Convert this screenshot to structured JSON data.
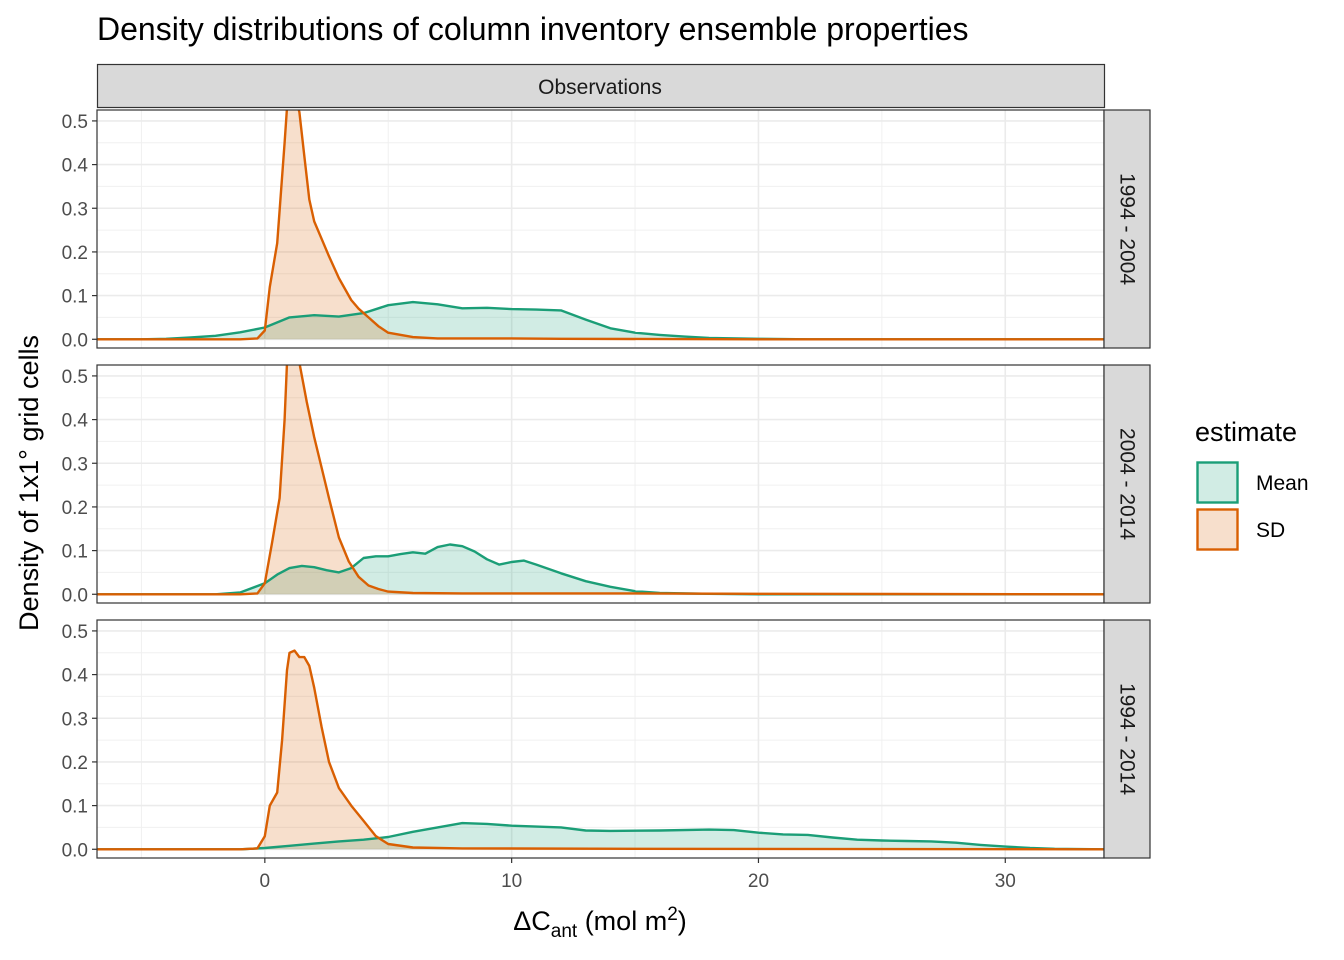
{
  "chart_data": {
    "type": "area",
    "title": "Density distributions of column inventory ensemble properties",
    "xlabel": {
      "base": "ΔC",
      "sub": "ant",
      "unit_open": " (mol m",
      "sup": "2",
      "unit_close": ")"
    },
    "ylabel": "Density of 1x1° grid cells",
    "column_facet": "Observations",
    "xlim": [
      -6.8,
      34.0
    ],
    "ylim": [
      -0.02,
      0.525
    ],
    "x_ticks": [
      0,
      10,
      20,
      30
    ],
    "y_ticks": [
      0.0,
      0.1,
      0.2,
      0.3,
      0.4,
      0.5
    ],
    "y_tick_labels": [
      "0.0",
      "0.1",
      "0.2",
      "0.3",
      "0.4",
      "0.5"
    ],
    "grid": true,
    "legend": {
      "title": "estimate",
      "position": "right"
    },
    "series_styles": [
      {
        "name": "Mean",
        "line_color": "#1b9e77",
        "fill_color": "#1b9e77",
        "fill_opacity": 0.2
      },
      {
        "name": "SD",
        "line_color": "#d95f02",
        "fill_color": "#d95f02",
        "fill_opacity": 0.2
      }
    ],
    "panels": [
      {
        "label": "1994 - 2004",
        "series": [
          {
            "name": "Mean",
            "points": [
              [
                -6.8,
                0
              ],
              [
                -5,
                0
              ],
              [
                -4,
                0.001
              ],
              [
                -3,
                0.004
              ],
              [
                -2,
                0.008
              ],
              [
                -1,
                0.016
              ],
              [
                0,
                0.027
              ],
              [
                1,
                0.05
              ],
              [
                2,
                0.055
              ],
              [
                3,
                0.052
              ],
              [
                4,
                0.06
              ],
              [
                5,
                0.078
              ],
              [
                6,
                0.085
              ],
              [
                7,
                0.08
              ],
              [
                8,
                0.071
              ],
              [
                9,
                0.072
              ],
              [
                10,
                0.069
              ],
              [
                11,
                0.068
              ],
              [
                12,
                0.066
              ],
              [
                13,
                0.045
              ],
              [
                14,
                0.025
              ],
              [
                15,
                0.015
              ],
              [
                16,
                0.01
              ],
              [
                17,
                0.006
              ],
              [
                18,
                0.003
              ],
              [
                20,
                0.001
              ],
              [
                22,
                0
              ],
              [
                25,
                0
              ],
              [
                30,
                0
              ],
              [
                34,
                0
              ]
            ]
          },
          {
            "name": "SD",
            "points": [
              [
                -6.8,
                0
              ],
              [
                -1,
                0
              ],
              [
                -0.3,
                0.002
              ],
              [
                0,
                0.02
              ],
              [
                0.2,
                0.12
              ],
              [
                0.5,
                0.22
              ],
              [
                0.8,
                0.45
              ],
              [
                0.9,
                0.53
              ],
              [
                1.2,
                0.56
              ],
              [
                1.4,
                0.52
              ],
              [
                1.6,
                0.42
              ],
              [
                1.8,
                0.32
              ],
              [
                2,
                0.27
              ],
              [
                2.3,
                0.23
              ],
              [
                2.6,
                0.19
              ],
              [
                3,
                0.14
              ],
              [
                3.5,
                0.09
              ],
              [
                3.8,
                0.07
              ],
              [
                4.2,
                0.05
              ],
              [
                4.6,
                0.03
              ],
              [
                5,
                0.015
              ],
              [
                6,
                0.005
              ],
              [
                7,
                0.002
              ],
              [
                10,
                0.002
              ],
              [
                12,
                0.001
              ],
              [
                20,
                0
              ],
              [
                34,
                0
              ]
            ]
          }
        ]
      },
      {
        "label": "2004 - 2014",
        "series": [
          {
            "name": "Mean",
            "points": [
              [
                -6.8,
                0
              ],
              [
                -2,
                0
              ],
              [
                -1,
                0.004
              ],
              [
                0,
                0.025
              ],
              [
                0.5,
                0.045
              ],
              [
                1,
                0.06
              ],
              [
                1.5,
                0.065
              ],
              [
                2,
                0.062
              ],
              [
                2.5,
                0.055
              ],
              [
                3,
                0.05
              ],
              [
                3.5,
                0.06
              ],
              [
                4,
                0.083
              ],
              [
                4.5,
                0.087
              ],
              [
                5,
                0.087
              ],
              [
                5.5,
                0.092
              ],
              [
                6,
                0.096
              ],
              [
                6.5,
                0.093
              ],
              [
                7,
                0.108
              ],
              [
                7.5,
                0.114
              ],
              [
                8,
                0.11
              ],
              [
                8.5,
                0.098
              ],
              [
                9,
                0.08
              ],
              [
                9.5,
                0.068
              ],
              [
                10,
                0.074
              ],
              [
                10.5,
                0.077
              ],
              [
                11,
                0.068
              ],
              [
                12,
                0.048
              ],
              [
                13,
                0.03
              ],
              [
                14,
                0.017
              ],
              [
                15,
                0.007
              ],
              [
                16,
                0.003
              ],
              [
                18,
                0.001
              ],
              [
                20,
                0
              ],
              [
                34,
                0
              ]
            ]
          },
          {
            "name": "SD",
            "points": [
              [
                -6.8,
                0
              ],
              [
                -1,
                0
              ],
              [
                -0.3,
                0.002
              ],
              [
                0,
                0.025
              ],
              [
                0.3,
                0.12
              ],
              [
                0.6,
                0.22
              ],
              [
                0.8,
                0.4
              ],
              [
                0.9,
                0.53
              ],
              [
                1.2,
                0.57
              ],
              [
                1.4,
                0.53
              ],
              [
                1.7,
                0.44
              ],
              [
                2,
                0.36
              ],
              [
                2.3,
                0.29
              ],
              [
                2.6,
                0.22
              ],
              [
                3,
                0.13
              ],
              [
                3.4,
                0.075
              ],
              [
                3.8,
                0.04
              ],
              [
                4.2,
                0.02
              ],
              [
                4.6,
                0.012
              ],
              [
                5,
                0.006
              ],
              [
                6,
                0.003
              ],
              [
                8,
                0.002
              ],
              [
                15,
                0.002
              ],
              [
                20,
                0.001
              ],
              [
                34,
                0
              ]
            ]
          }
        ]
      },
      {
        "label": "1994 - 2014",
        "series": [
          {
            "name": "Mean",
            "points": [
              [
                -6.8,
                0
              ],
              [
                -1,
                0
              ],
              [
                0,
                0.003
              ],
              [
                1,
                0.008
              ],
              [
                2,
                0.013
              ],
              [
                3,
                0.018
              ],
              [
                4,
                0.022
              ],
              [
                5,
                0.028
              ],
              [
                6,
                0.04
              ],
              [
                7,
                0.05
              ],
              [
                8,
                0.06
              ],
              [
                9,
                0.058
              ],
              [
                10,
                0.054
              ],
              [
                11,
                0.052
              ],
              [
                12,
                0.05
              ],
              [
                13,
                0.043
              ],
              [
                14,
                0.042
              ],
              [
                16,
                0.043
              ],
              [
                18,
                0.045
              ],
              [
                19,
                0.044
              ],
              [
                20,
                0.038
              ],
              [
                21,
                0.034
              ],
              [
                22,
                0.033
              ],
              [
                23,
                0.027
              ],
              [
                24,
                0.022
              ],
              [
                25,
                0.02
              ],
              [
                26,
                0.019
              ],
              [
                27,
                0.018
              ],
              [
                28,
                0.015
              ],
              [
                29,
                0.01
              ],
              [
                30,
                0.006
              ],
              [
                31,
                0.003
              ],
              [
                32,
                0.001
              ],
              [
                34,
                0
              ]
            ]
          },
          {
            "name": "SD",
            "points": [
              [
                -6.8,
                0
              ],
              [
                -1,
                0
              ],
              [
                -0.3,
                0.002
              ],
              [
                0,
                0.03
              ],
              [
                0.2,
                0.1
              ],
              [
                0.5,
                0.13
              ],
              [
                0.7,
                0.25
              ],
              [
                0.9,
                0.41
              ],
              [
                1.0,
                0.45
              ],
              [
                1.2,
                0.455
              ],
              [
                1.4,
                0.44
              ],
              [
                1.6,
                0.44
              ],
              [
                1.8,
                0.42
              ],
              [
                2.0,
                0.37
              ],
              [
                2.3,
                0.28
              ],
              [
                2.6,
                0.2
              ],
              [
                3.0,
                0.14
              ],
              [
                3.5,
                0.1
              ],
              [
                4,
                0.065
              ],
              [
                4.5,
                0.03
              ],
              [
                5,
                0.012
              ],
              [
                6,
                0.004
              ],
              [
                8,
                0.002
              ],
              [
                15,
                0.001
              ],
              [
                34,
                0
              ]
            ]
          }
        ]
      }
    ]
  }
}
